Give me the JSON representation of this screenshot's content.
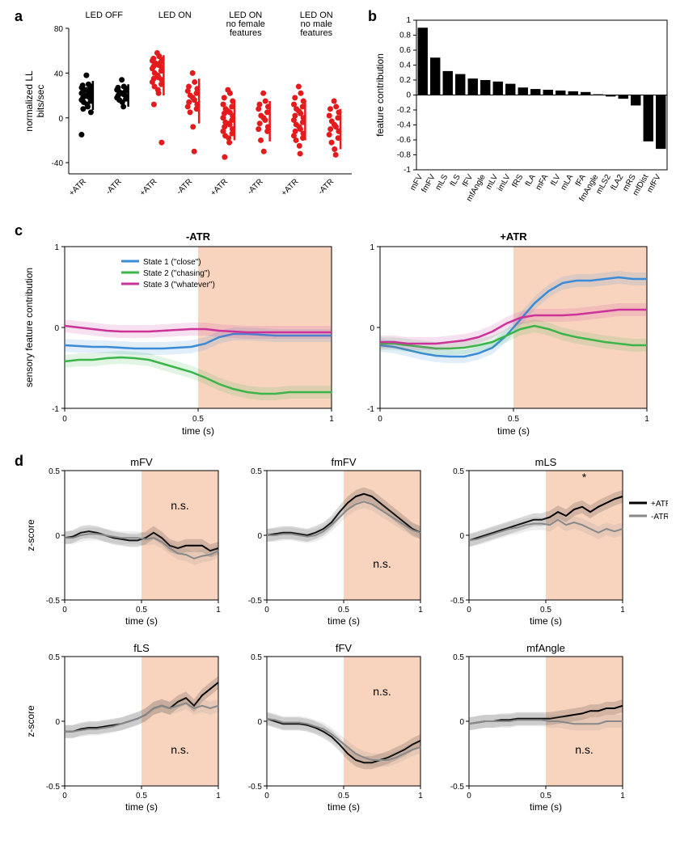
{
  "panelA": {
    "label": "a",
    "type": "scatter",
    "ylabel": "normalized LL\nbits/sec",
    "ylim": [
      -50,
      80
    ],
    "yticks": [
      -40,
      0,
      40,
      80
    ],
    "groups": [
      {
        "label": "LED OFF",
        "sub": [
          "+ATR",
          "-ATR"
        ],
        "color": "#000000"
      },
      {
        "label": "LED ON",
        "sub": [
          "+ATR",
          "-ATR"
        ],
        "color": "#e41a1c"
      },
      {
        "label": "LED ON\nno female\nfeatures",
        "sub": [
          "+ATR",
          "-ATR"
        ],
        "color": "#e41a1c"
      },
      {
        "label": "LED ON\nno male\nfeatures",
        "sub": [
          "+ATR",
          "-ATR"
        ],
        "color": "#e41a1c"
      }
    ],
    "data": [
      {
        "col": 0,
        "y": [
          38,
          30,
          29,
          28,
          27,
          26,
          25,
          25,
          24,
          23,
          22,
          22,
          21,
          20,
          20,
          19,
          18,
          17,
          16,
          15,
          14,
          12,
          10,
          8,
          5,
          -15
        ]
      },
      {
        "col": 1,
        "y": [
          34,
          28,
          27,
          26,
          25,
          24,
          23,
          22,
          21,
          20,
          19,
          18,
          17,
          16,
          14,
          10
        ]
      },
      {
        "col": 2,
        "y": [
          58,
          55,
          53,
          52,
          51,
          50,
          49,
          48,
          47,
          46,
          45,
          44,
          42,
          40,
          38,
          36,
          35,
          34,
          32,
          30,
          28,
          25,
          22,
          12,
          -22
        ]
      },
      {
        "col": 3,
        "y": [
          40,
          32,
          28,
          26,
          24,
          22,
          20,
          18,
          16,
          14,
          12,
          10,
          8,
          5,
          -8,
          -30
        ]
      },
      {
        "col": 4,
        "y": [
          25,
          22,
          18,
          15,
          12,
          10,
          8,
          6,
          5,
          4,
          2,
          0,
          -2,
          -4,
          -5,
          -6,
          -8,
          -10,
          -12,
          -14,
          -16,
          -18,
          -22,
          -35
        ]
      },
      {
        "col": 5,
        "y": [
          22,
          15,
          12,
          10,
          8,
          5,
          2,
          0,
          -2,
          -5,
          -8,
          -10,
          -12,
          -20,
          -30
        ]
      },
      {
        "col": 6,
        "y": [
          28,
          22,
          18,
          15,
          12,
          10,
          8,
          6,
          4,
          2,
          0,
          -2,
          -4,
          -6,
          -8,
          -10,
          -12,
          -14,
          -16,
          -18,
          -20,
          -25,
          -32
        ]
      },
      {
        "col": 7,
        "y": [
          15,
          10,
          8,
          5,
          2,
          0,
          -3,
          -6,
          -8,
          -10,
          -12,
          -15,
          -18,
          -22,
          -28,
          -33
        ]
      }
    ],
    "errorbars": [
      {
        "col": 0,
        "mean": 20,
        "err": 13,
        "color": "#000000"
      },
      {
        "col": 1,
        "mean": 20,
        "err": 10,
        "color": "#000000"
      },
      {
        "col": 2,
        "mean": 38,
        "err": 18,
        "color": "#e41a1c"
      },
      {
        "col": 3,
        "mean": 15,
        "err": 20,
        "color": "#e41a1c"
      },
      {
        "col": 4,
        "mean": -2,
        "err": 18,
        "color": "#e41a1c"
      },
      {
        "col": 5,
        "mean": -3,
        "err": 18,
        "color": "#e41a1c"
      },
      {
        "col": 6,
        "mean": -2,
        "err": 18,
        "color": "#e41a1c"
      },
      {
        "col": 7,
        "mean": -10,
        "err": 18,
        "color": "#e41a1c"
      }
    ]
  },
  "panelB": {
    "label": "b",
    "type": "bar",
    "ylabel": "feature contribution",
    "ylim": [
      -1,
      1
    ],
    "yticks": [
      -1,
      -0.8,
      -0.6,
      -0.4,
      -0.2,
      0,
      0.2,
      0.4,
      0.6,
      0.8,
      1
    ],
    "bar_color": "#000000",
    "categories": [
      "mFV",
      "fmFV",
      "mLS",
      "fLS",
      "fFV",
      "mfAngle",
      "mLV",
      "imLV",
      "fRS",
      "fLA",
      "mFA",
      "fLV",
      "mLA",
      "fFA",
      "fmAngle",
      "mLS2",
      "fLA2",
      "mRS",
      "mfDist",
      "mfFV"
    ],
    "values": [
      0.9,
      0.5,
      0.32,
      0.28,
      0.22,
      0.2,
      0.18,
      0.15,
      0.1,
      0.08,
      0.07,
      0.06,
      0.05,
      0.04,
      0.01,
      -0.02,
      -0.05,
      -0.14,
      -0.62,
      -0.72
    ]
  },
  "panelC": {
    "label": "c",
    "type": "line",
    "ylabel": "sensory feature contribution",
    "xlabel": "time (s)",
    "ylim": [
      -1,
      1
    ],
    "yticks": [
      -1,
      0,
      1
    ],
    "xlim": [
      0,
      1
    ],
    "xticks": [
      0,
      0.5,
      1
    ],
    "shade_x": [
      0.5,
      1
    ],
    "shade_color": "#f4b894",
    "subplots": [
      {
        "title": "-ATR",
        "position": "left"
      },
      {
        "title": "+ATR",
        "position": "right"
      }
    ],
    "legend": [
      {
        "label": "State 1 (\"close\")",
        "color": "#3b8bd6"
      },
      {
        "label": "State 2 (\"chasing\")",
        "color": "#3bb54a"
      },
      {
        "label": "State 3 (\"whatever\")",
        "color": "#cc3399"
      }
    ],
    "series_left": [
      {
        "color": "#3b8bd6",
        "y": [
          -0.22,
          -0.23,
          -0.24,
          -0.24,
          -0.25,
          -0.26,
          -0.26,
          -0.26,
          -0.25,
          -0.24,
          -0.2,
          -0.12,
          -0.08,
          -0.08,
          -0.09,
          -0.1,
          -0.1,
          -0.1,
          -0.1,
          -0.1
        ]
      },
      {
        "color": "#3bb54a",
        "y": [
          -0.42,
          -0.4,
          -0.4,
          -0.38,
          -0.37,
          -0.38,
          -0.4,
          -0.45,
          -0.5,
          -0.55,
          -0.62,
          -0.7,
          -0.76,
          -0.8,
          -0.82,
          -0.82,
          -0.8,
          -0.8,
          -0.8,
          -0.8
        ]
      },
      {
        "color": "#cc3399",
        "y": [
          0.02,
          0.0,
          -0.02,
          -0.04,
          -0.05,
          -0.05,
          -0.05,
          -0.04,
          -0.03,
          -0.02,
          -0.02,
          -0.04,
          -0.05,
          -0.06,
          -0.06,
          -0.06,
          -0.06,
          -0.06,
          -0.06,
          -0.06
        ]
      }
    ],
    "series_right": [
      {
        "color": "#3b8bd6",
        "y": [
          -0.22,
          -0.24,
          -0.28,
          -0.32,
          -0.35,
          -0.36,
          -0.36,
          -0.32,
          -0.25,
          -0.1,
          0.1,
          0.3,
          0.45,
          0.55,
          0.58,
          0.58,
          0.6,
          0.62,
          0.6,
          0.6
        ]
      },
      {
        "color": "#3bb54a",
        "y": [
          -0.2,
          -0.2,
          -0.22,
          -0.24,
          -0.26,
          -0.26,
          -0.25,
          -0.22,
          -0.18,
          -0.1,
          -0.02,
          0.02,
          -0.02,
          -0.08,
          -0.12,
          -0.15,
          -0.18,
          -0.2,
          -0.22,
          -0.22
        ]
      },
      {
        "color": "#cc3399",
        "y": [
          -0.18,
          -0.18,
          -0.2,
          -0.2,
          -0.2,
          -0.18,
          -0.16,
          -0.12,
          -0.05,
          0.05,
          0.12,
          0.15,
          0.15,
          0.15,
          0.16,
          0.18,
          0.2,
          0.22,
          0.22,
          0.22
        ]
      }
    ]
  },
  "panelD": {
    "label": "d",
    "type": "line-grid",
    "ylabel": "z-score",
    "xlabel": "time (s)",
    "ylim": [
      -0.5,
      0.5
    ],
    "yticks": [
      -0.5,
      0,
      0.5
    ],
    "xlim": [
      0,
      1
    ],
    "xticks": [
      0,
      0.5,
      1
    ],
    "shade_x": [
      0.5,
      1
    ],
    "shade_color": "#f4b894",
    "legend": [
      {
        "label": "+ATR",
        "color": "#000000"
      },
      {
        "label": "-ATR",
        "color": "#888888"
      }
    ],
    "subplots": [
      {
        "title": "mFV",
        "sig": "n.s.",
        "sig_y": 0.2,
        "atr": [
          -0.02,
          -0.01,
          0.02,
          0.03,
          0.02,
          0.0,
          -0.02,
          -0.03,
          -0.04,
          -0.04,
          -0.02,
          0.02,
          -0.02,
          -0.08,
          -0.1,
          -0.08,
          -0.08,
          -0.08,
          -0.12,
          -0.1
        ],
        "natr": [
          -0.02,
          -0.02,
          0.0,
          0.01,
          0.01,
          0.0,
          -0.01,
          -0.02,
          -0.02,
          -0.02,
          -0.03,
          -0.02,
          -0.05,
          -0.1,
          -0.14,
          -0.15,
          -0.18,
          -0.16,
          -0.15,
          -0.12
        ]
      },
      {
        "title": "fmFV",
        "sig": "n.s.",
        "sig_y": -0.25,
        "atr": [
          0.0,
          0.01,
          0.02,
          0.02,
          0.01,
          0.0,
          0.02,
          0.05,
          0.1,
          0.18,
          0.25,
          0.3,
          0.32,
          0.3,
          0.25,
          0.2,
          0.15,
          0.1,
          0.05,
          0.02
        ],
        "natr": [
          0.0,
          0.0,
          0.01,
          0.01,
          0.0,
          -0.01,
          0.0,
          0.03,
          0.08,
          0.14,
          0.2,
          0.24,
          0.26,
          0.24,
          0.2,
          0.16,
          0.12,
          0.08,
          0.04,
          0.02
        ]
      },
      {
        "title": "mLS",
        "sig": "*",
        "sig_y": 0.42,
        "atr": [
          -0.04,
          -0.02,
          0.0,
          0.02,
          0.04,
          0.06,
          0.08,
          0.1,
          0.12,
          0.12,
          0.14,
          0.18,
          0.15,
          0.2,
          0.22,
          0.18,
          0.22,
          0.25,
          0.28,
          0.3
        ],
        "natr": [
          -0.04,
          -0.03,
          -0.01,
          0.01,
          0.03,
          0.05,
          0.06,
          0.08,
          0.09,
          0.09,
          0.08,
          0.12,
          0.08,
          0.1,
          0.08,
          0.05,
          0.02,
          0.05,
          0.03,
          0.05
        ]
      },
      {
        "title": "fLS",
        "sig": "n.s.",
        "sig_y": -0.25,
        "atr": [
          -0.08,
          -0.08,
          -0.06,
          -0.05,
          -0.05,
          -0.04,
          -0.03,
          -0.02,
          0.0,
          0.02,
          0.05,
          0.1,
          0.12,
          0.1,
          0.15,
          0.18,
          0.12,
          0.2,
          0.25,
          0.3
        ],
        "natr": [
          -0.08,
          -0.08,
          -0.07,
          -0.06,
          -0.06,
          -0.05,
          -0.04,
          -0.02,
          0.0,
          0.02,
          0.05,
          0.1,
          0.12,
          0.1,
          0.12,
          0.14,
          0.1,
          0.12,
          0.1,
          0.12
        ]
      },
      {
        "title": "fFV",
        "sig": "n.s.",
        "sig_y": 0.2,
        "atr": [
          0.02,
          0.0,
          -0.02,
          -0.02,
          -0.02,
          -0.03,
          -0.05,
          -0.08,
          -0.12,
          -0.18,
          -0.25,
          -0.3,
          -0.32,
          -0.32,
          -0.3,
          -0.28,
          -0.25,
          -0.22,
          -0.18,
          -0.15
        ],
        "natr": [
          0.02,
          0.01,
          -0.01,
          -0.01,
          -0.01,
          -0.02,
          -0.04,
          -0.06,
          -0.1,
          -0.15,
          -0.2,
          -0.25,
          -0.28,
          -0.3,
          -0.3,
          -0.3,
          -0.28,
          -0.25,
          -0.22,
          -0.2
        ]
      },
      {
        "title": "mfAngle",
        "sig": "n.s.",
        "sig_y": -0.25,
        "atr": [
          -0.02,
          -0.01,
          0.0,
          0.0,
          0.01,
          0.01,
          0.02,
          0.02,
          0.02,
          0.02,
          0.02,
          0.03,
          0.04,
          0.05,
          0.06,
          0.08,
          0.08,
          0.1,
          0.1,
          0.12
        ],
        "natr": [
          -0.02,
          -0.01,
          0.0,
          0.0,
          0.0,
          0.0,
          0.01,
          0.01,
          0.01,
          0.01,
          0.0,
          0.0,
          -0.01,
          -0.02,
          -0.02,
          -0.02,
          -0.02,
          0.0,
          0.0,
          0.0
        ]
      }
    ]
  }
}
